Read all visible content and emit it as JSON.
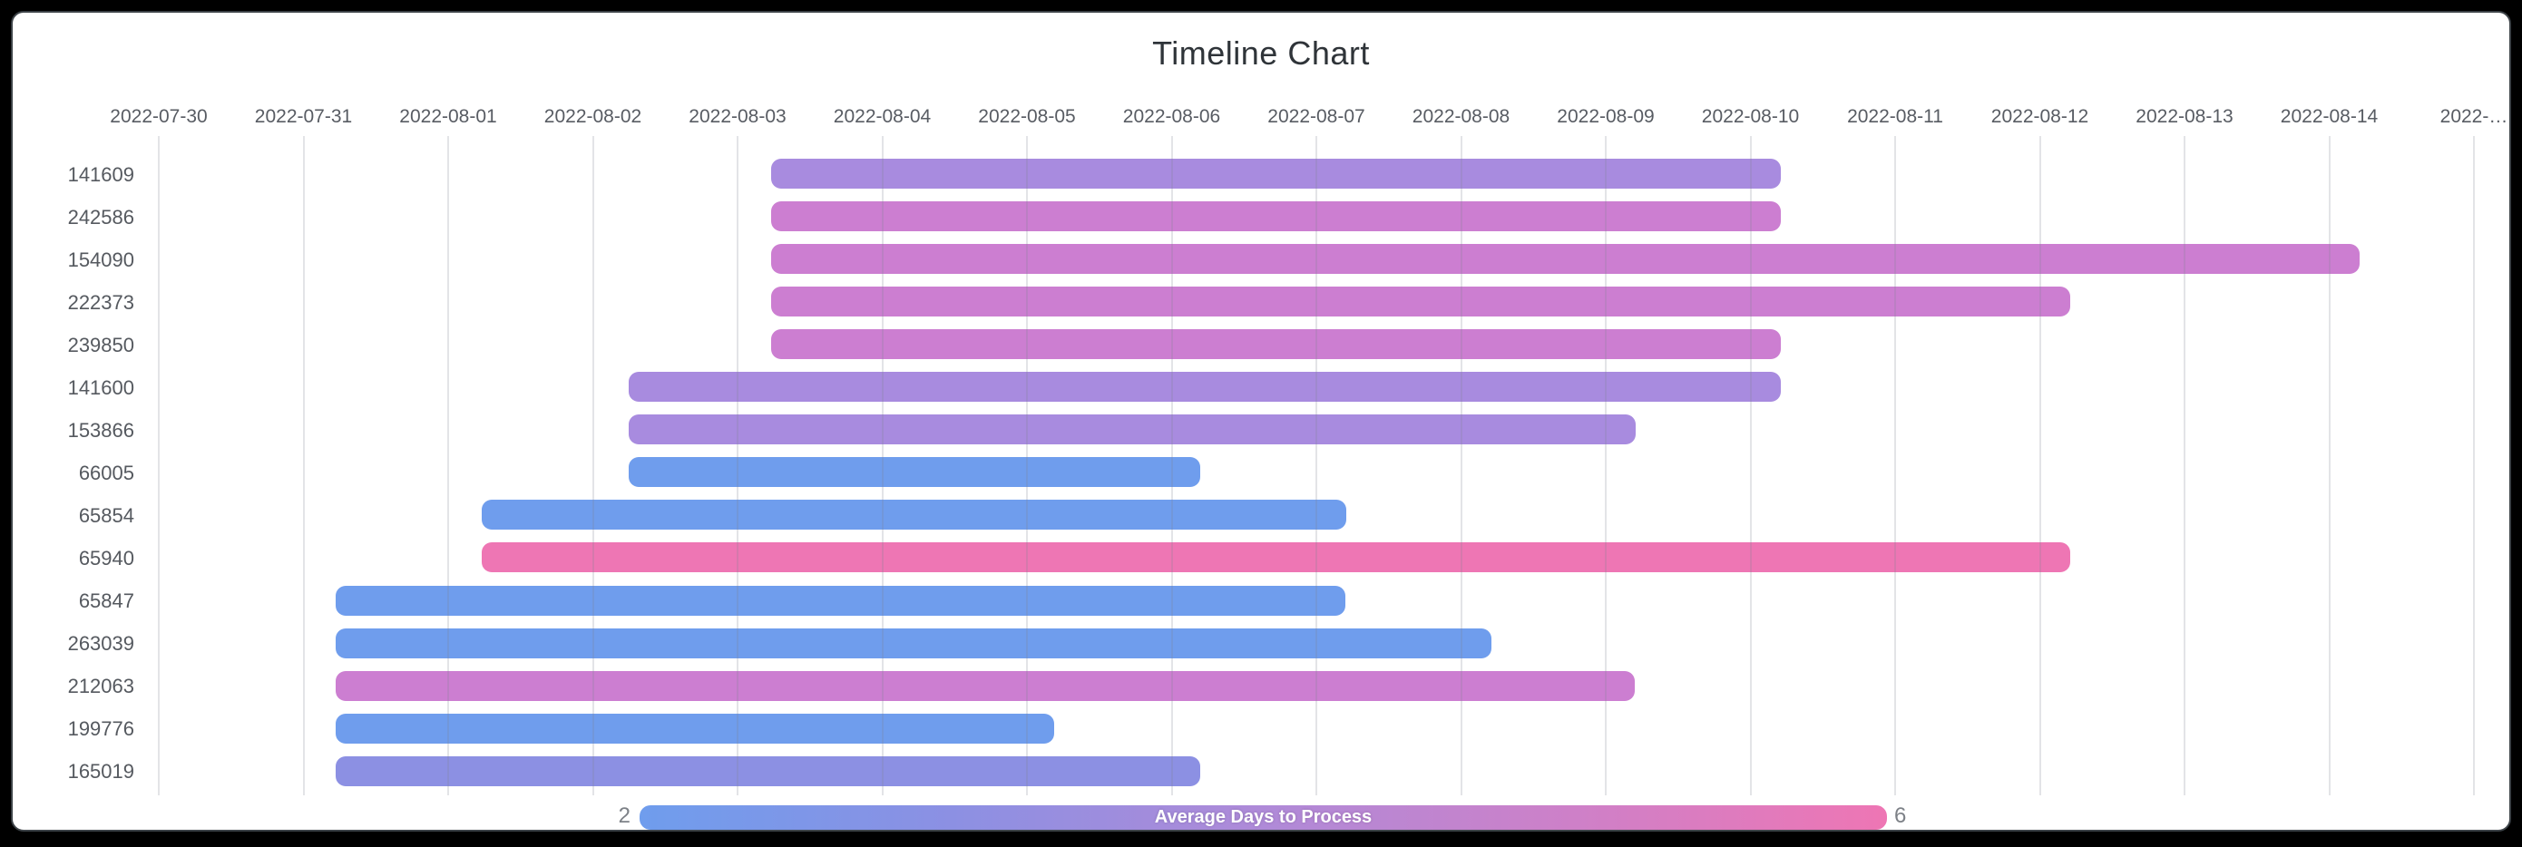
{
  "chart": {
    "title": "Timeline Chart"
  },
  "legend": {
    "min": "2",
    "max": "6",
    "title": "Average Days to Process"
  },
  "colors": {
    "blue": "#6f9ded",
    "periwinkle": "#8c90e3",
    "purple": "#a88bdf",
    "orchid": "#cc7ed1",
    "pink": "#ee76b4",
    "gradient_stops": [
      "#6f9ded",
      "#8c90e3",
      "#af8ad8",
      "#ce80c8",
      "#ee76b4"
    ],
    "grid": "#e4e5e8",
    "axis_label": "#585c63",
    "title_color": "#2f3439"
  },
  "chart_data": {
    "type": "bar",
    "variant": "timeline",
    "title": "Timeline Chart",
    "legend": {
      "label": "Average Days to Process",
      "min": 2,
      "max": 6,
      "orientation": "horizontal-gradient"
    },
    "x_axis": {
      "origin": "2022-07-30",
      "tick_labels": [
        "2022-07-30",
        "2022-07-31",
        "2022-08-01",
        "2022-08-02",
        "2022-08-03",
        "2022-08-04",
        "2022-08-05",
        "2022-08-06",
        "2022-08-07",
        "2022-08-08",
        "2022-08-09",
        "2022-08-10",
        "2022-08-11",
        "2022-08-12",
        "2022-08-13",
        "2022-08-14",
        "2022-…"
      ],
      "grid": true
    },
    "rows": [
      {
        "label": "141609",
        "start": "2022-08-03",
        "end": "2022-08-10",
        "start_day": 4.23,
        "end_day": 11.21,
        "duration_days": 7,
        "color": "purple",
        "avg_days": 4
      },
      {
        "label": "242586",
        "start": "2022-08-03",
        "end": "2022-08-10",
        "start_day": 4.23,
        "end_day": 11.21,
        "duration_days": 7,
        "color": "orchid",
        "avg_days": 5
      },
      {
        "label": "154090",
        "start": "2022-08-03",
        "end": "2022-08-14",
        "start_day": 4.23,
        "end_day": 15.21,
        "duration_days": 11,
        "color": "orchid",
        "avg_days": 5
      },
      {
        "label": "222373",
        "start": "2022-08-03",
        "end": "2022-08-12",
        "start_day": 4.23,
        "end_day": 13.21,
        "duration_days": 9,
        "color": "orchid",
        "avg_days": 5
      },
      {
        "label": "239850",
        "start": "2022-08-03",
        "end": "2022-08-10",
        "start_day": 4.23,
        "end_day": 11.21,
        "duration_days": 7,
        "color": "orchid",
        "avg_days": 5
      },
      {
        "label": "141600",
        "start": "2022-08-02",
        "end": "2022-08-10",
        "start_day": 3.25,
        "end_day": 11.21,
        "duration_days": 8,
        "color": "purple",
        "avg_days": 4
      },
      {
        "label": "153866",
        "start": "2022-08-02",
        "end": "2022-08-09",
        "start_day": 3.25,
        "end_day": 10.21,
        "duration_days": 7,
        "color": "purple",
        "avg_days": 4
      },
      {
        "label": "66005",
        "start": "2022-08-02",
        "end": "2022-08-06",
        "start_day": 3.25,
        "end_day": 7.2,
        "duration_days": 4,
        "color": "blue",
        "avg_days": 2
      },
      {
        "label": "65854",
        "start": "2022-08-01",
        "end": "2022-08-07",
        "start_day": 2.23,
        "end_day": 8.21,
        "duration_days": 6,
        "color": "blue",
        "avg_days": 2
      },
      {
        "label": "65940",
        "start": "2022-08-01",
        "end": "2022-08-12",
        "start_day": 2.23,
        "end_day": 13.21,
        "duration_days": 11,
        "color": "pink",
        "avg_days": 6
      },
      {
        "label": "65847",
        "start": "2022-07-31",
        "end": "2022-08-07",
        "start_day": 1.22,
        "end_day": 8.2,
        "duration_days": 7,
        "color": "blue",
        "avg_days": 2
      },
      {
        "label": "263039",
        "start": "2022-07-31",
        "end": "2022-08-08",
        "start_day": 1.22,
        "end_day": 9.21,
        "duration_days": 8,
        "color": "blue",
        "avg_days": 2
      },
      {
        "label": "212063",
        "start": "2022-07-31",
        "end": "2022-08-09",
        "start_day": 1.22,
        "end_day": 10.2,
        "duration_days": 9,
        "color": "orchid",
        "avg_days": 5
      },
      {
        "label": "199776",
        "start": "2022-07-31",
        "end": "2022-08-05",
        "start_day": 1.22,
        "end_day": 6.19,
        "duration_days": 5,
        "color": "blue",
        "avg_days": 2
      },
      {
        "label": "165019",
        "start": "2022-07-31",
        "end": "2022-08-06",
        "start_day": 1.22,
        "end_day": 7.2,
        "duration_days": 6,
        "color": "periwinkle",
        "avg_days": 3
      }
    ]
  }
}
